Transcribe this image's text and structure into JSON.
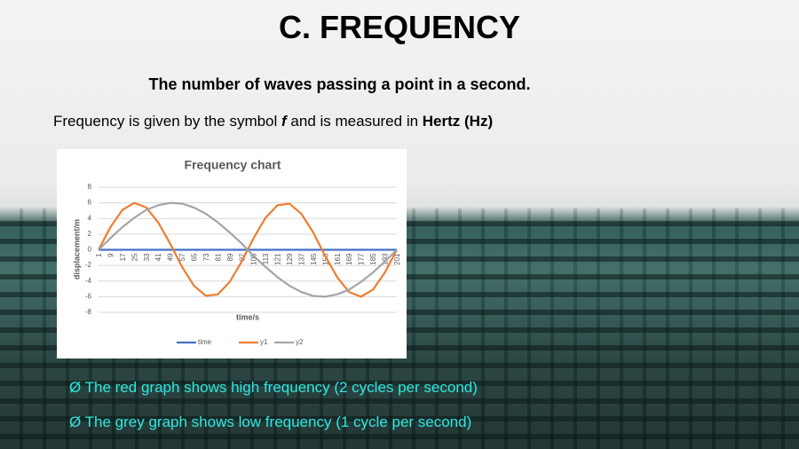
{
  "header": {
    "title": "C. FREQUENCY",
    "subtitle": "The number of waves passing a point in a second."
  },
  "definition": {
    "parts": [
      "Frequency is given by the symbol ",
      "f",
      " and is measured in ",
      "Hertz (Hz)"
    ]
  },
  "chart_data": {
    "type": "line",
    "title": "Frequency chart",
    "x_label": "time/s",
    "y_label": "displacement/m",
    "categories": [
      "1",
      "9",
      "17",
      "25",
      "33",
      "41",
      "49",
      "57",
      "65",
      "73",
      "81",
      "89",
      "97",
      "105",
      "113",
      "121",
      "129",
      "137",
      "145",
      "153",
      "161",
      "169",
      "177",
      "185",
      "193",
      "201"
    ],
    "series": [
      {
        "name": "time",
        "color": "#4472c4",
        "values": [
          0,
          0,
          0,
          0,
          0,
          0,
          0,
          0,
          0,
          0,
          0,
          0,
          0,
          0,
          0,
          0,
          0,
          0,
          0,
          0,
          0,
          0,
          0,
          0,
          0,
          0
        ]
      },
      {
        "name": "y1",
        "color": "#ed7d31",
        "values": [
          0,
          2.9,
          5.1,
          6.0,
          5.4,
          3.5,
          0.8,
          -2.2,
          -4.6,
          -5.9,
          -5.7,
          -4.1,
          -1.5,
          1.5,
          4.1,
          5.7,
          5.9,
          4.6,
          2.2,
          -0.8,
          -3.5,
          -5.4,
          -6.0,
          -5.1,
          -2.9,
          0
        ]
      },
      {
        "name": "y2",
        "color": "#a5a5a5",
        "values": [
          0,
          1.5,
          2.9,
          4.1,
          5.1,
          5.7,
          6.0,
          5.9,
          5.4,
          4.6,
          3.5,
          2.2,
          0.8,
          -0.8,
          -2.2,
          -3.5,
          -4.6,
          -5.4,
          -5.9,
          -6.0,
          -5.7,
          -5.1,
          -4.1,
          -2.9,
          -1.5,
          0
        ]
      }
    ],
    "ylim": [
      -8,
      8
    ],
    "yticks": [
      -8,
      -6,
      -4,
      -2,
      0,
      2,
      4,
      6,
      8
    ],
    "grid": true,
    "legend": "bottom"
  },
  "bullets": [
    {
      "marker": "Ø",
      "text": "The red graph shows high frequency (2 cycles per second)"
    },
    {
      "marker": "Ø",
      "text": "The grey graph shows low frequency (1 cycle per second)"
    }
  ]
}
